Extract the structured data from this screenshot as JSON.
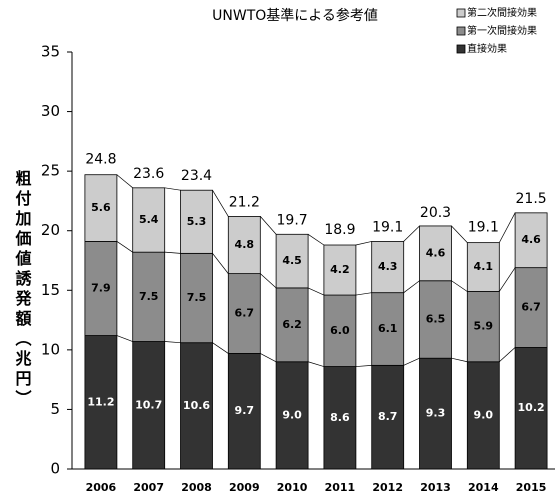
{
  "chart_data": {
    "type": "stacked_bar",
    "title": "UNWTO基準による参考値",
    "ylabel": "粗付加価値誘発額（兆円）",
    "categories": [
      "2006",
      "2007",
      "2008",
      "2009",
      "2010",
      "2011",
      "2012",
      "2013",
      "2014",
      "2015"
    ],
    "series": [
      {
        "name": "直接効果",
        "color": "#333333",
        "label_color": "#ffffff",
        "values": [
          11.2,
          10.7,
          10.6,
          9.7,
          9.0,
          8.6,
          8.7,
          9.3,
          9.0,
          10.2
        ],
        "value_labels": [
          "11.2",
          "10.7",
          "10.6",
          "9.7",
          "9.0",
          "8.6",
          "8.7",
          "9.3",
          "9.0",
          "10.2"
        ]
      },
      {
        "name": "第一次間接効果",
        "color": "#8c8c8c",
        "label_color": "#000000",
        "values": [
          7.9,
          7.5,
          7.5,
          6.7,
          6.2,
          6.0,
          6.1,
          6.5,
          5.9,
          6.7
        ],
        "value_labels": [
          "7.9",
          "7.5",
          "7.5",
          "6.7",
          "6.2",
          "6.0",
          "6.1",
          "6.5",
          "5.9",
          "6.7"
        ]
      },
      {
        "name": "第二次間接効果",
        "color": "#cccccc",
        "label_color": "#000000",
        "values": [
          5.6,
          5.4,
          5.3,
          4.8,
          4.5,
          4.2,
          4.3,
          4.6,
          4.1,
          4.6
        ],
        "value_labels": [
          "5.6",
          "5.4",
          "5.3",
          "4.8",
          "4.5",
          "4.2",
          "4.3",
          "4.6",
          "4.1",
          "4.6"
        ]
      }
    ],
    "totals": [
      24.8,
      23.6,
      23.4,
      21.2,
      19.7,
      18.9,
      19.1,
      20.3,
      19.1,
      21.5
    ],
    "ylim": [
      0,
      35
    ],
    "yticks": [
      0,
      5,
      10,
      15,
      20,
      25,
      30,
      35
    ],
    "grid": false,
    "legend": "top-right"
  }
}
